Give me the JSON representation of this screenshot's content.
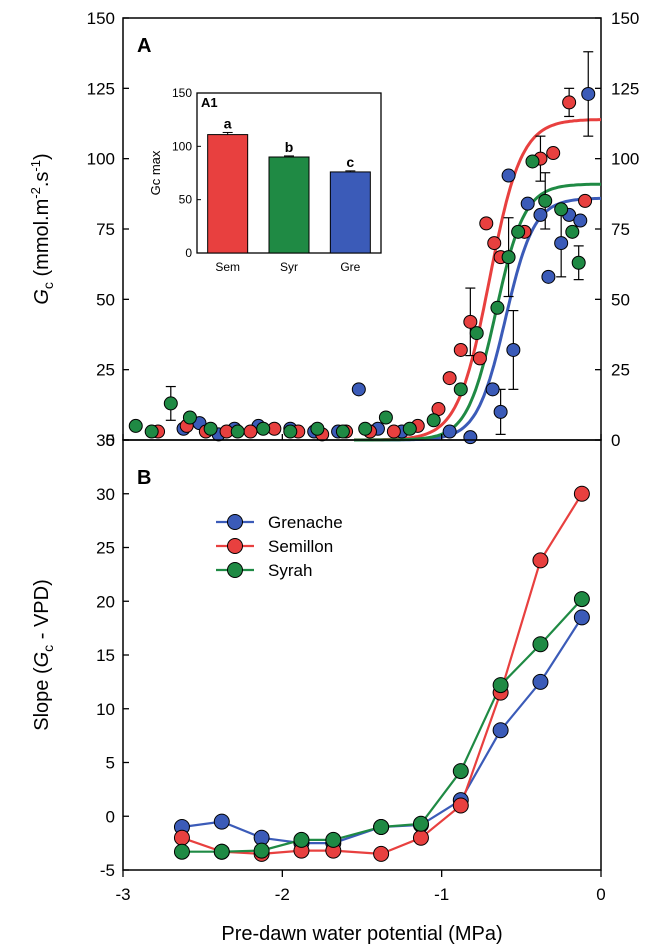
{
  "colors": {
    "grenache": "#3b5bb8",
    "semillon": "#e8403f",
    "syrah": "#1f8a44",
    "axis": "#000000"
  },
  "chart_data": [
    {
      "panel": "A",
      "type": "scatter",
      "xlim": [
        -3,
        0
      ],
      "ylim": [
        0,
        150
      ],
      "x_ticks": [
        -3,
        -2,
        -1,
        0
      ],
      "y_ticks": [
        0,
        25,
        50,
        75,
        100,
        125,
        150
      ],
      "ylabel_parts": [
        "G",
        "c",
        " (mmol.m",
        "-2",
        ".s",
        "-1",
        ")"
      ],
      "series": [
        {
          "name": "Grenache",
          "color_key": "grenache",
          "points": [
            {
              "x": -2.62,
              "y": 4
            },
            {
              "x": -2.52,
              "y": 6
            },
            {
              "x": -2.4,
              "y": 2
            },
            {
              "x": -2.3,
              "y": 4
            },
            {
              "x": -2.15,
              "y": 5
            },
            {
              "x": -1.95,
              "y": 4
            },
            {
              "x": -1.8,
              "y": 3
            },
            {
              "x": -1.65,
              "y": 3
            },
            {
              "x": -1.52,
              "y": 18
            },
            {
              "x": -1.4,
              "y": 4
            },
            {
              "x": -1.25,
              "y": 3
            },
            {
              "x": -0.95,
              "y": 3
            },
            {
              "x": -0.82,
              "y": 1
            },
            {
              "x": -0.68,
              "y": 18
            },
            {
              "x": -0.63,
              "y": 10
            },
            {
              "x": -0.58,
              "y": 94
            },
            {
              "x": -0.55,
              "y": 32
            },
            {
              "x": -0.46,
              "y": 84
            },
            {
              "x": -0.38,
              "y": 80
            },
            {
              "x": -0.33,
              "y": 58
            },
            {
              "x": -0.25,
              "y": 70
            },
            {
              "x": -0.2,
              "y": 80
            },
            {
              "x": -0.13,
              "y": 78
            },
            {
              "x": -0.08,
              "y": 123
            }
          ],
          "error_bars": [
            {
              "x": -0.08,
              "y": 123,
              "err": 15
            },
            {
              "x": -0.55,
              "y": 32,
              "err": 14
            },
            {
              "x": -0.25,
              "y": 70,
              "err": 12
            },
            {
              "x": -0.63,
              "y": 10,
              "err": 8
            }
          ],
          "curve": {
            "a": 86,
            "x0": -0.6,
            "b": 0.09
          }
        },
        {
          "name": "Semillon",
          "color_key": "semillon",
          "points": [
            {
              "x": -2.78,
              "y": 3
            },
            {
              "x": -2.6,
              "y": 5
            },
            {
              "x": -2.48,
              "y": 3
            },
            {
              "x": -2.35,
              "y": 3
            },
            {
              "x": -2.2,
              "y": 3
            },
            {
              "x": -2.05,
              "y": 4
            },
            {
              "x": -1.9,
              "y": 3
            },
            {
              "x": -1.75,
              "y": 2
            },
            {
              "x": -1.6,
              "y": 3
            },
            {
              "x": -1.45,
              "y": 3
            },
            {
              "x": -1.3,
              "y": 3
            },
            {
              "x": -1.15,
              "y": 5
            },
            {
              "x": -1.02,
              "y": 11
            },
            {
              "x": -0.95,
              "y": 22
            },
            {
              "x": -0.88,
              "y": 32
            },
            {
              "x": -0.82,
              "y": 42
            },
            {
              "x": -0.76,
              "y": 29
            },
            {
              "x": -0.72,
              "y": 77
            },
            {
              "x": -0.67,
              "y": 70
            },
            {
              "x": -0.63,
              "y": 65
            },
            {
              "x": -0.48,
              "y": 74
            },
            {
              "x": -0.38,
              "y": 100
            },
            {
              "x": -0.3,
              "y": 102
            },
            {
              "x": -0.2,
              "y": 120
            },
            {
              "x": -0.1,
              "y": 85
            }
          ],
          "error_bars": [
            {
              "x": -0.82,
              "y": 42,
              "err": 12
            },
            {
              "x": -0.2,
              "y": 120,
              "err": 5
            },
            {
              "x": -0.38,
              "y": 100,
              "err": 8
            }
          ],
          "curve": {
            "a": 114,
            "x0": -0.7,
            "b": 0.1
          }
        },
        {
          "name": "Syrah",
          "color_key": "syrah",
          "points": [
            {
              "x": -2.92,
              "y": 5
            },
            {
              "x": -2.82,
              "y": 3
            },
            {
              "x": -2.7,
              "y": 13
            },
            {
              "x": -2.58,
              "y": 8
            },
            {
              "x": -2.45,
              "y": 4
            },
            {
              "x": -2.28,
              "y": 3
            },
            {
              "x": -2.12,
              "y": 4
            },
            {
              "x": -1.95,
              "y": 3
            },
            {
              "x": -1.78,
              "y": 4
            },
            {
              "x": -1.62,
              "y": 3
            },
            {
              "x": -1.48,
              "y": 4
            },
            {
              "x": -1.35,
              "y": 8
            },
            {
              "x": -1.2,
              "y": 4
            },
            {
              "x": -1.05,
              "y": 7
            },
            {
              "x": -0.88,
              "y": 18
            },
            {
              "x": -0.78,
              "y": 38
            },
            {
              "x": -0.65,
              "y": 47
            },
            {
              "x": -0.58,
              "y": 65
            },
            {
              "x": -0.52,
              "y": 74
            },
            {
              "x": -0.43,
              "y": 99
            },
            {
              "x": -0.35,
              "y": 85
            },
            {
              "x": -0.25,
              "y": 82
            },
            {
              "x": -0.18,
              "y": 74
            },
            {
              "x": -0.14,
              "y": 63
            }
          ],
          "error_bars": [
            {
              "x": -2.7,
              "y": 13,
              "err": 6
            },
            {
              "x": -0.58,
              "y": 65,
              "err": 14
            },
            {
              "x": -0.35,
              "y": 85,
              "err": 10
            },
            {
              "x": -0.14,
              "y": 63,
              "err": 6
            }
          ],
          "curve": {
            "a": 91,
            "x0": -0.66,
            "b": 0.09
          }
        }
      ]
    },
    {
      "panel": "A1",
      "type": "bar",
      "categories": [
        "Sem",
        "Syr",
        "Gre"
      ],
      "values": [
        111,
        90,
        76
      ],
      "errors": [
        2,
        1,
        1
      ],
      "letters": [
        "a",
        "b",
        "c"
      ],
      "color_keys": [
        "semillon",
        "syrah",
        "grenache"
      ],
      "ylabel": "Gc max",
      "ylim": [
        0,
        150
      ],
      "y_ticks": [
        0,
        50,
        100,
        150
      ]
    },
    {
      "panel": "B",
      "type": "line",
      "xlim": [
        -3,
        0
      ],
      "ylim": [
        -5,
        35
      ],
      "x_ticks": [
        -3,
        -2,
        -1,
        0
      ],
      "y_ticks": [
        -5,
        0,
        5,
        10,
        15,
        20,
        25,
        30,
        35
      ],
      "xlabel": "Pre-dawn water potential (MPa)",
      "ylabel_parts": [
        "Slope (",
        "G",
        "c",
        " - VPD)"
      ],
      "legend": [
        "Grenache",
        "Semillon",
        "Syrah"
      ],
      "series": [
        {
          "name": "Grenache",
          "color_key": "grenache",
          "x": [
            -2.63,
            -2.38,
            -2.13,
            -1.88,
            -1.68,
            -1.38,
            -1.13,
            -0.88,
            -0.63,
            -0.38,
            -0.12
          ],
          "y": [
            -1,
            -0.5,
            -2,
            -2.5,
            -2.5,
            -1,
            -0.8,
            1.5,
            8,
            12.5,
            18.5
          ]
        },
        {
          "name": "Semillon",
          "color_key": "semillon",
          "x": [
            -2.63,
            -2.38,
            -2.13,
            -1.88,
            -1.68,
            -1.38,
            -1.13,
            -0.88,
            -0.63,
            -0.38,
            -0.12
          ],
          "y": [
            -2,
            -3.3,
            -3.5,
            -3.2,
            -3.2,
            -3.5,
            -2,
            1,
            11.5,
            23.8,
            30
          ]
        },
        {
          "name": "Syrah",
          "color_key": "syrah",
          "x": [
            -2.63,
            -2.38,
            -2.13,
            -1.88,
            -1.68,
            -1.38,
            -1.13,
            -0.88,
            -0.63,
            -0.38,
            -0.12
          ],
          "y": [
            -3.3,
            -3.3,
            -3.2,
            -2.2,
            -2.2,
            -1,
            -0.7,
            4.2,
            12.2,
            16,
            20.2
          ]
        }
      ]
    }
  ]
}
